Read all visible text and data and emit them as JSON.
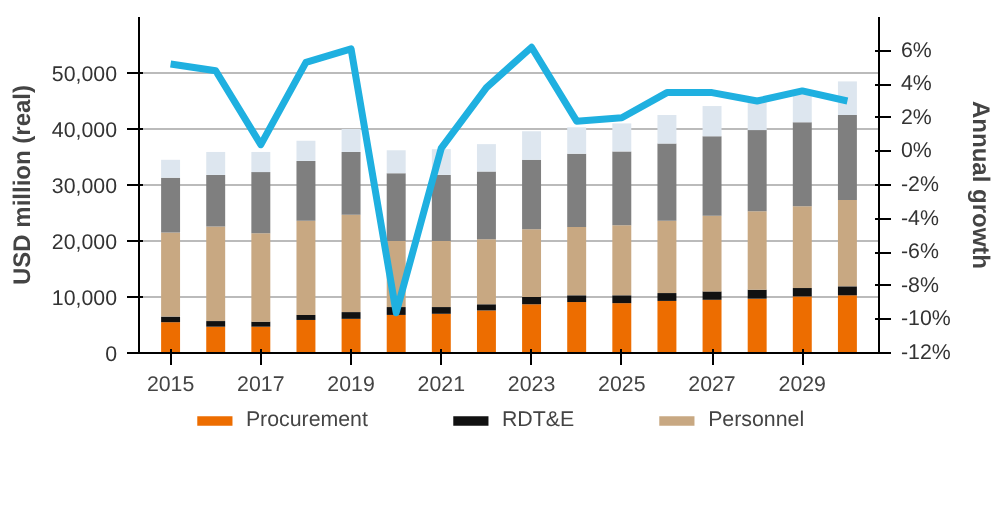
{
  "chart_data": {
    "type": "bar",
    "stacked": true,
    "categories": [
      "2015",
      null,
      "2017",
      null,
      "2019",
      null,
      "2021",
      null,
      "2023",
      null,
      "2025",
      null,
      "2027",
      null,
      "2029",
      null
    ],
    "ylabel": "USD million (real)",
    "y2label": "Annual growth",
    "ylim": [
      0,
      60000
    ],
    "yticks": [
      {
        "value": 0,
        "label": "0"
      },
      {
        "value": 10000,
        "label": "10,000"
      },
      {
        "value": 20000,
        "label": "20,000"
      },
      {
        "value": 30000,
        "label": "30,000"
      },
      {
        "value": 40000,
        "label": "40,000"
      },
      {
        "value": 50000,
        "label": "50,000"
      }
    ],
    "y2lim": [
      -12,
      8
    ],
    "y2ticks": [
      {
        "value": -12,
        "label": "-12%"
      },
      {
        "value": -10,
        "label": "-10%"
      },
      {
        "value": -8,
        "label": "-8%"
      },
      {
        "value": -6,
        "label": "-6%"
      },
      {
        "value": -4,
        "label": "-4%"
      },
      {
        "value": -2,
        "label": "-2%"
      },
      {
        "value": 0,
        "label": "0%"
      },
      {
        "value": 2,
        "label": "2%"
      },
      {
        "value": 4,
        "label": "4%"
      },
      {
        "value": 6,
        "label": "6%"
      }
    ],
    "grid": "y",
    "legend": "bottom",
    "series": [
      {
        "name": "Procurement",
        "color": "#ed6d00",
        "values": [
          5500,
          4700,
          4700,
          5900,
          6100,
          6800,
          7000,
          7600,
          8700,
          9100,
          8900,
          9300,
          9500,
          9700,
          10100,
          10300
        ]
      },
      {
        "name": "RDT&E",
        "color": "#111111",
        "values": [
          1000,
          1000,
          900,
          900,
          1200,
          1400,
          1200,
          1100,
          1300,
          1200,
          1400,
          1400,
          1500,
          1600,
          1500,
          1600
        ]
      },
      {
        "name": "Personnel",
        "color": "#c8a882",
        "values": [
          15000,
          16900,
          15800,
          16800,
          17400,
          11800,
          11800,
          11600,
          12100,
          12200,
          12500,
          12900,
          13500,
          14000,
          14600,
          15400
        ]
      },
      {
        "color": "#7f7f7f",
        "values": [
          9800,
          9200,
          10900,
          10700,
          11200,
          12100,
          11800,
          12100,
          12400,
          13100,
          13200,
          13800,
          14200,
          14500,
          15000,
          15200
        ]
      },
      {
        "color": "#dde6ef",
        "values": [
          3200,
          4100,
          3600,
          3600,
          4100,
          4100,
          4600,
          4900,
          5100,
          4700,
          5000,
          5100,
          5400,
          5000,
          5000,
          6000
        ]
      },
      {
        "type": "line",
        "axis": "y2",
        "color": "#1fb0e0",
        "values": [
          5.2,
          4.8,
          0.4,
          5.3,
          6.1,
          -9.6,
          0.2,
          3.8,
          6.2,
          1.8,
          2.0,
          3.5,
          3.5,
          3.0,
          3.6,
          3.0
        ]
      }
    ]
  }
}
